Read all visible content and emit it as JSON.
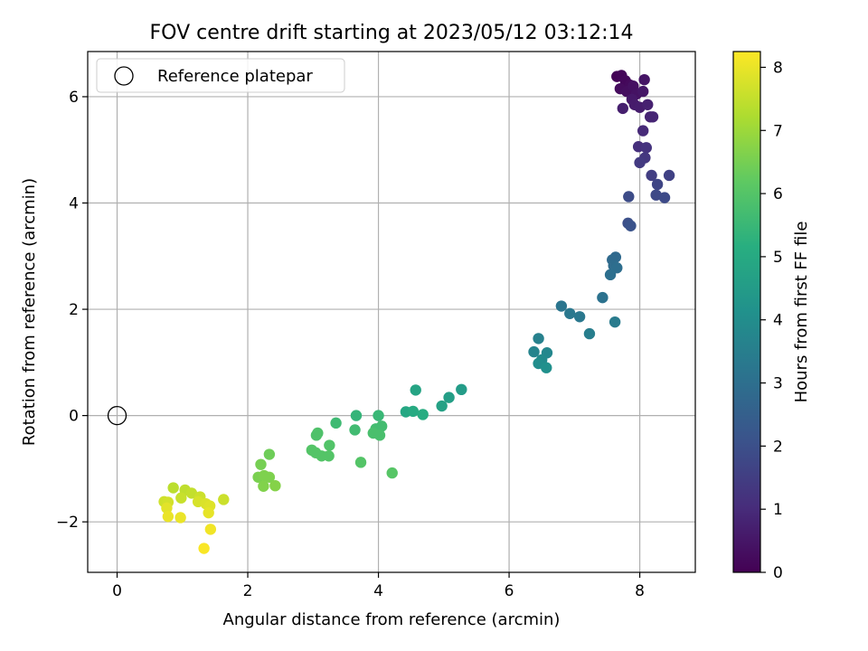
{
  "chart_data": {
    "type": "scatter",
    "title": "FOV centre drift starting at 2023/05/12 03:12:14",
    "xlabel": "Angular distance from reference (arcmin)",
    "ylabel": "Rotation from reference (arcmin)",
    "xlim": [
      -0.45,
      8.85
    ],
    "ylim": [
      -2.95,
      6.85
    ],
    "xticks": [
      0,
      2,
      4,
      6,
      8
    ],
    "yticks": [
      -2,
      0,
      2,
      4,
      6
    ],
    "grid": true,
    "legend": {
      "placement": "top-left",
      "entries": [
        "Reference platepar"
      ]
    },
    "reference": {
      "label": "Reference platepar",
      "x": 0,
      "y": 0
    },
    "colorbar": {
      "label": "Hours from first FF file",
      "colormap": "viridis",
      "range": [
        0,
        8.25
      ],
      "ticks": [
        0,
        1,
        2,
        3,
        4,
        5,
        6,
        7,
        8
      ]
    },
    "points": [
      {
        "x": 7.65,
        "y": 6.38,
        "h": 0.05
      },
      {
        "x": 7.72,
        "y": 6.4,
        "h": 0.1
      },
      {
        "x": 7.78,
        "y": 6.3,
        "h": 0.15
      },
      {
        "x": 7.85,
        "y": 6.22,
        "h": 0.2
      },
      {
        "x": 7.7,
        "y": 6.15,
        "h": 0.25
      },
      {
        "x": 7.8,
        "y": 6.1,
        "h": 0.3
      },
      {
        "x": 7.9,
        "y": 6.2,
        "h": 0.35
      },
      {
        "x": 7.95,
        "y": 6.05,
        "h": 0.4
      },
      {
        "x": 8.07,
        "y": 6.32,
        "h": 0.45
      },
      {
        "x": 8.05,
        "y": 6.1,
        "h": 0.5
      },
      {
        "x": 7.88,
        "y": 5.95,
        "h": 0.55
      },
      {
        "x": 7.92,
        "y": 5.85,
        "h": 0.6
      },
      {
        "x": 8.0,
        "y": 5.8,
        "h": 0.65
      },
      {
        "x": 7.74,
        "y": 5.78,
        "h": 0.7
      },
      {
        "x": 8.12,
        "y": 5.85,
        "h": 0.75
      },
      {
        "x": 8.16,
        "y": 5.62,
        "h": 0.8
      },
      {
        "x": 8.2,
        "y": 5.62,
        "h": 0.85
      },
      {
        "x": 8.05,
        "y": 5.36,
        "h": 0.95
      },
      {
        "x": 7.98,
        "y": 5.06,
        "h": 1.1
      },
      {
        "x": 8.1,
        "y": 5.04,
        "h": 1.2
      },
      {
        "x": 8.08,
        "y": 4.85,
        "h": 1.3
      },
      {
        "x": 8.0,
        "y": 4.76,
        "h": 1.4
      },
      {
        "x": 8.18,
        "y": 4.52,
        "h": 1.5
      },
      {
        "x": 8.45,
        "y": 4.52,
        "h": 1.6
      },
      {
        "x": 8.27,
        "y": 4.35,
        "h": 1.7
      },
      {
        "x": 8.25,
        "y": 4.15,
        "h": 1.8
      },
      {
        "x": 8.38,
        "y": 4.1,
        "h": 1.85
      },
      {
        "x": 7.83,
        "y": 4.12,
        "h": 1.9
      },
      {
        "x": 7.82,
        "y": 3.62,
        "h": 2.0
      },
      {
        "x": 7.86,
        "y": 3.57,
        "h": 2.1
      },
      {
        "x": 7.63,
        "y": 2.98,
        "h": 2.8
      },
      {
        "x": 7.58,
        "y": 2.93,
        "h": 2.85
      },
      {
        "x": 7.6,
        "y": 2.82,
        "h": 2.9
      },
      {
        "x": 7.65,
        "y": 2.78,
        "h": 2.95
      },
      {
        "x": 7.55,
        "y": 2.65,
        "h": 3.0
      },
      {
        "x": 7.43,
        "y": 2.22,
        "h": 3.1
      },
      {
        "x": 6.8,
        "y": 2.06,
        "h": 3.2
      },
      {
        "x": 6.93,
        "y": 1.92,
        "h": 3.3
      },
      {
        "x": 7.08,
        "y": 1.86,
        "h": 3.3
      },
      {
        "x": 7.62,
        "y": 1.76,
        "h": 3.4
      },
      {
        "x": 7.23,
        "y": 1.54,
        "h": 3.5
      },
      {
        "x": 6.45,
        "y": 1.45,
        "h": 3.6
      },
      {
        "x": 6.38,
        "y": 1.2,
        "h": 3.7
      },
      {
        "x": 6.58,
        "y": 1.18,
        "h": 3.8
      },
      {
        "x": 6.5,
        "y": 1.05,
        "h": 3.9
      },
      {
        "x": 6.45,
        "y": 0.98,
        "h": 4.0
      },
      {
        "x": 6.57,
        "y": 0.9,
        "h": 4.1
      },
      {
        "x": 5.27,
        "y": 0.49,
        "h": 4.5
      },
      {
        "x": 5.08,
        "y": 0.34,
        "h": 4.6
      },
      {
        "x": 4.97,
        "y": 0.18,
        "h": 4.7
      },
      {
        "x": 4.57,
        "y": 0.48,
        "h": 4.8
      },
      {
        "x": 4.42,
        "y": 0.07,
        "h": 4.9
      },
      {
        "x": 4.53,
        "y": 0.08,
        "h": 5.0
      },
      {
        "x": 4.68,
        "y": 0.02,
        "h": 5.1
      },
      {
        "x": 3.66,
        "y": 0.0,
        "h": 5.4
      },
      {
        "x": 4.0,
        "y": 0.0,
        "h": 5.5
      },
      {
        "x": 3.35,
        "y": -0.14,
        "h": 5.6
      },
      {
        "x": 3.64,
        "y": -0.27,
        "h": 5.65
      },
      {
        "x": 4.05,
        "y": -0.2,
        "h": 5.7
      },
      {
        "x": 3.96,
        "y": -0.25,
        "h": 5.7
      },
      {
        "x": 3.92,
        "y": -0.33,
        "h": 5.8
      },
      {
        "x": 4.02,
        "y": -0.37,
        "h": 5.8
      },
      {
        "x": 3.07,
        "y": -0.33,
        "h": 5.9
      },
      {
        "x": 3.05,
        "y": -0.37,
        "h": 5.9
      },
      {
        "x": 3.25,
        "y": -0.56,
        "h": 5.95
      },
      {
        "x": 2.98,
        "y": -0.65,
        "h": 6.0
      },
      {
        "x": 3.04,
        "y": -0.7,
        "h": 6.0
      },
      {
        "x": 3.13,
        "y": -0.76,
        "h": 6.0
      },
      {
        "x": 3.24,
        "y": -0.76,
        "h": 6.0
      },
      {
        "x": 3.73,
        "y": -0.88,
        "h": 6.0
      },
      {
        "x": 4.21,
        "y": -1.08,
        "h": 6.05
      },
      {
        "x": 2.33,
        "y": -0.73,
        "h": 6.4
      },
      {
        "x": 2.2,
        "y": -0.92,
        "h": 6.5
      },
      {
        "x": 2.16,
        "y": -1.16,
        "h": 6.55
      },
      {
        "x": 2.25,
        "y": -1.13,
        "h": 6.6
      },
      {
        "x": 2.33,
        "y": -1.16,
        "h": 6.6
      },
      {
        "x": 2.24,
        "y": -1.33,
        "h": 6.65
      },
      {
        "x": 2.42,
        "y": -1.32,
        "h": 6.7
      },
      {
        "x": 0.86,
        "y": -1.36,
        "h": 7.4
      },
      {
        "x": 1.04,
        "y": -1.4,
        "h": 7.45
      },
      {
        "x": 1.14,
        "y": -1.46,
        "h": 7.5
      },
      {
        "x": 0.98,
        "y": -1.55,
        "h": 7.55
      },
      {
        "x": 1.27,
        "y": -1.53,
        "h": 7.6
      },
      {
        "x": 1.63,
        "y": -1.58,
        "h": 7.6
      },
      {
        "x": 0.72,
        "y": -1.62,
        "h": 7.65
      },
      {
        "x": 0.78,
        "y": -1.63,
        "h": 7.7
      },
      {
        "x": 1.24,
        "y": -1.62,
        "h": 7.75
      },
      {
        "x": 1.36,
        "y": -1.66,
        "h": 7.8
      },
      {
        "x": 1.42,
        "y": -1.7,
        "h": 7.85
      },
      {
        "x": 0.76,
        "y": -1.74,
        "h": 7.9
      },
      {
        "x": 1.4,
        "y": -1.83,
        "h": 7.95
      },
      {
        "x": 0.78,
        "y": -1.9,
        "h": 8.0
      },
      {
        "x": 0.97,
        "y": -1.92,
        "h": 8.0
      },
      {
        "x": 1.43,
        "y": -2.14,
        "h": 8.1
      },
      {
        "x": 1.33,
        "y": -2.5,
        "h": 8.2
      }
    ]
  }
}
